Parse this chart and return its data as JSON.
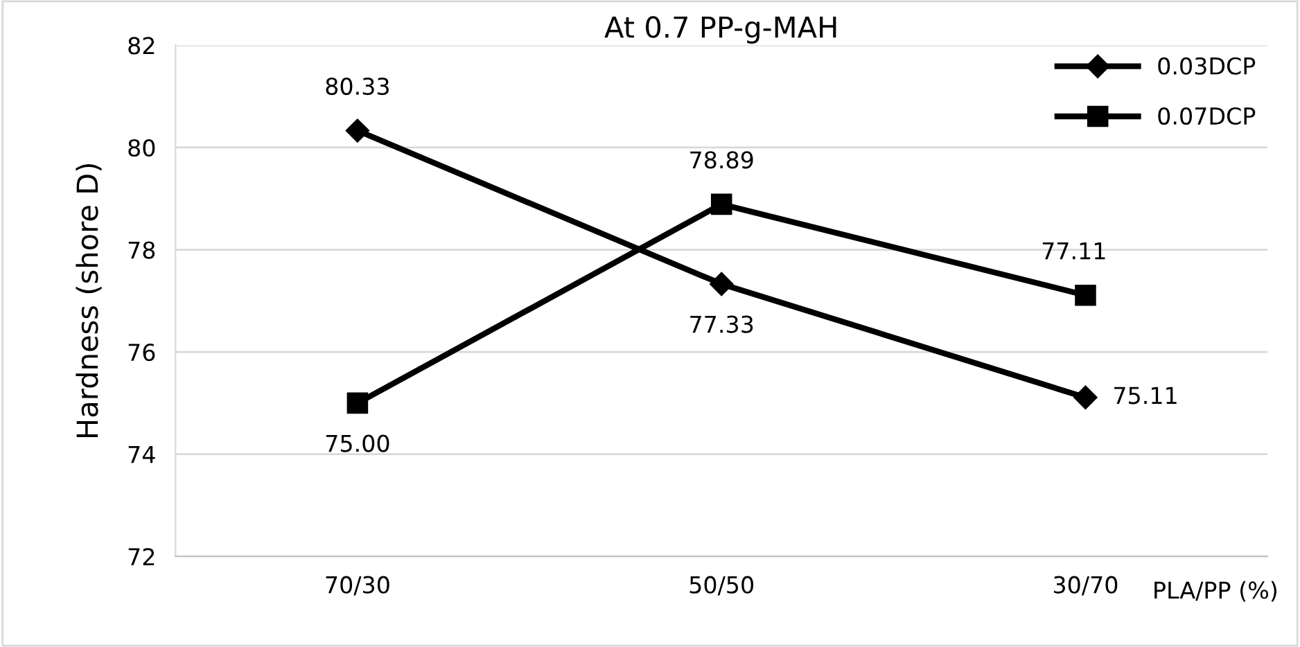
{
  "chart_data": {
    "type": "line",
    "title": "At 0.7 PP-g-MAH",
    "xlabel": "PLA/PP (%)",
    "ylabel": "Hardness (shore D)",
    "categories": [
      "70/30",
      "50/50",
      "30/70"
    ],
    "series": [
      {
        "name": "0.03DCP",
        "color": "#000000",
        "marker": "diamond",
        "values": [
          80.33,
          77.33,
          75.11
        ],
        "value_labels": [
          "80.33",
          "77.33",
          "75.11"
        ]
      },
      {
        "name": "0.07DCP",
        "color": "#000000",
        "marker": "square",
        "values": [
          75.0,
          78.89,
          77.11
        ],
        "value_labels": [
          "75.00",
          "78.89",
          "77.11"
        ]
      }
    ],
    "ylim": [
      72,
      82
    ],
    "yticks": [
      72,
      74,
      76,
      78,
      80,
      82
    ],
    "grid": "y",
    "legend": "top right",
    "line_style": "solid"
  }
}
